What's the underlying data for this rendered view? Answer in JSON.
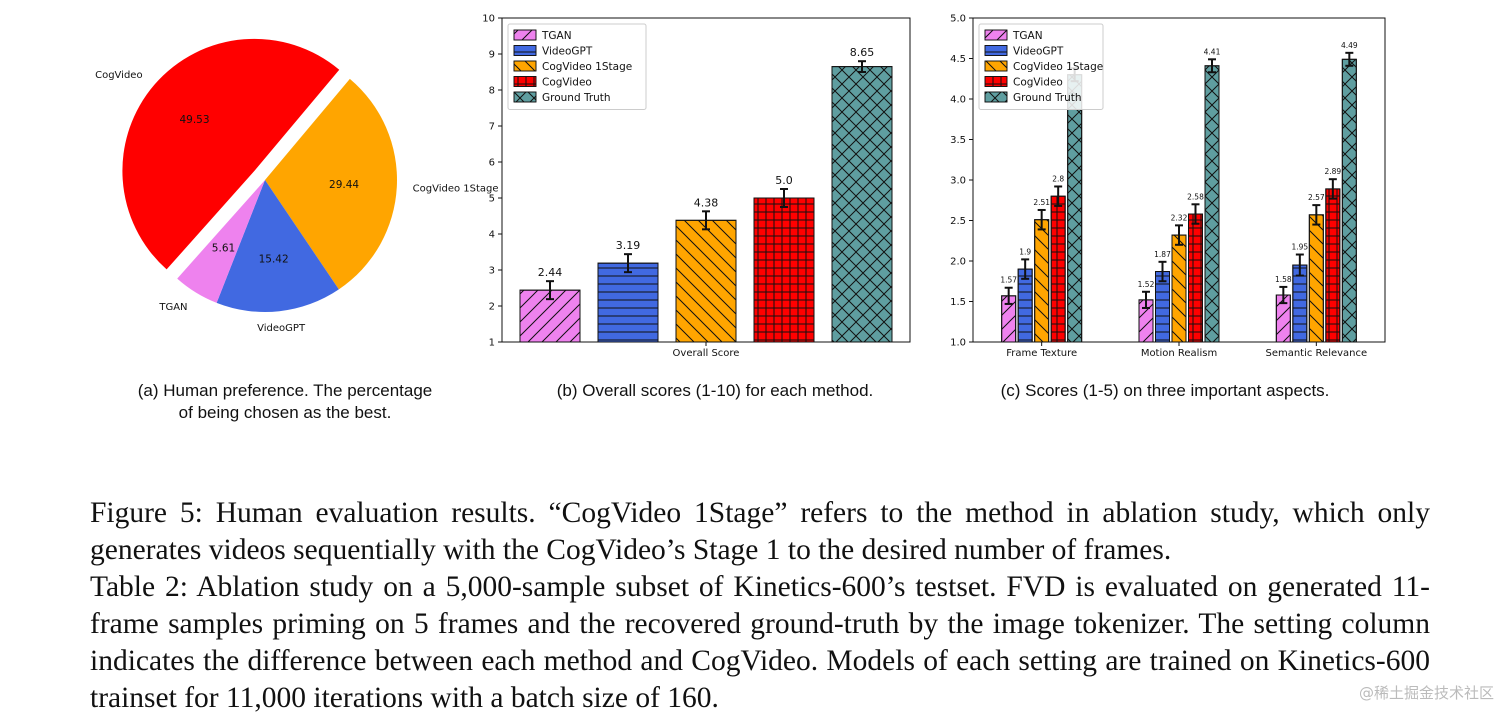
{
  "chart_data": [
    {
      "type": "pie",
      "labels": [
        "CogVideo 1Stage",
        "VideoGPT",
        "TGAN",
        "CogVideo"
      ],
      "values": [
        29.44,
        15.42,
        5.61,
        49.53
      ],
      "value_labels": [
        "29.44",
        "15.42",
        "5.61",
        "49.53"
      ],
      "colors": [
        "#ffa500",
        "#4169e1",
        "#ee82ee",
        "#ff0000"
      ],
      "exploded": "CogVideo"
    },
    {
      "type": "bar",
      "categories": [
        "Overall Score"
      ],
      "series": [
        {
          "name": "TGAN",
          "values": [
            2.44
          ],
          "value_labels": [
            "2.44"
          ],
          "errors": [
            0.25
          ],
          "color": "#ee82ee",
          "hatch": "diagonal-up"
        },
        {
          "name": "VideoGPT",
          "values": [
            3.19
          ],
          "value_labels": [
            "3.19"
          ],
          "errors": [
            0.25
          ],
          "color": "#4169e1",
          "hatch": "horizontal"
        },
        {
          "name": "CogVideo 1Stage",
          "values": [
            4.38
          ],
          "value_labels": [
            "4.38"
          ],
          "errors": [
            0.25
          ],
          "color": "#ffa500",
          "hatch": "diagonal-down"
        },
        {
          "name": "CogVideo",
          "values": [
            5.0
          ],
          "value_labels": [
            "5.0"
          ],
          "errors": [
            0.25
          ],
          "color": "#ff0000",
          "hatch": "grid"
        },
        {
          "name": "Ground Truth",
          "values": [
            8.65
          ],
          "value_labels": [
            "8.65"
          ],
          "errors": [
            0.15
          ],
          "color": "#5f9ea0",
          "hatch": "cross"
        }
      ],
      "ylim": [
        1,
        10
      ],
      "yticks": [
        "1",
        "2",
        "3",
        "4",
        "5",
        "6",
        "7",
        "8",
        "9",
        "10"
      ],
      "legend": "top-left"
    },
    {
      "type": "bar",
      "categories": [
        "Frame Texture",
        "Motion Realism",
        "Semantic Relevance"
      ],
      "series": [
        {
          "name": "TGAN",
          "values": [
            1.57,
            1.52,
            1.58
          ],
          "value_labels": [
            "1.57",
            "1.52",
            "1.58"
          ],
          "errors": [
            0.1,
            0.1,
            0.1
          ],
          "color": "#ee82ee",
          "hatch": "diagonal-up"
        },
        {
          "name": "VideoGPT",
          "values": [
            1.9,
            1.87,
            1.95
          ],
          "value_labels": [
            "1.9",
            "1.87",
            "1.95"
          ],
          "errors": [
            0.12,
            0.12,
            0.13
          ],
          "color": "#4169e1",
          "hatch": "horizontal"
        },
        {
          "name": "CogVideo 1Stage",
          "values": [
            2.51,
            2.32,
            2.57
          ],
          "value_labels": [
            "2.51",
            "2.32",
            "2.57"
          ],
          "errors": [
            0.12,
            0.12,
            0.12
          ],
          "color": "#ffa500",
          "hatch": "diagonal-down"
        },
        {
          "name": "CogVideo",
          "values": [
            2.8,
            2.58,
            2.89
          ],
          "value_labels": [
            "2.8",
            "2.58",
            "2.89"
          ],
          "errors": [
            0.12,
            0.12,
            0.12
          ],
          "color": "#ff0000",
          "hatch": "grid"
        },
        {
          "name": "Ground Truth",
          "values": [
            4.3,
            4.41,
            4.49
          ],
          "value_labels": [
            "",
            "4.41",
            "4.49"
          ],
          "errors": [
            0.08,
            0.08,
            0.08
          ],
          "color": "#5f9ea0",
          "hatch": "cross"
        }
      ],
      "ylim": [
        1.0,
        5.0
      ],
      "yticks": [
        "1.0",
        "1.5",
        "2.0",
        "2.5",
        "3.0",
        "3.5",
        "4.0",
        "4.5",
        "5.0"
      ],
      "legend": "top-left"
    }
  ],
  "captions": {
    "a": [
      "(a) Human preference. The percentage",
      "of being chosen as the best."
    ],
    "b": "(b) Overall scores (1-10) for each method.",
    "c": "(c) Scores (1-5) on three important aspects."
  },
  "figure_caption": "Figure 5: Human evaluation results. “CogVideo 1Stage” refers to the method in ablation study, which only generates videos sequentially with the CogVideo’s Stage 1 to the desired number of frames.",
  "table_caption": "Table 2: Ablation study on a 5,000-sample subset of Kinetics-600’s testset. FVD is evaluated on generated 11-frame samples priming on 5 frames and the recovered ground-truth by the image tokenizer. The setting column indicates the difference between each method and CogVideo. Models of each setting are trained on Kinetics-600 trainset for 11,000 iterations with a batch size of 160.",
  "watermark": "@稀土掘金技术社区"
}
